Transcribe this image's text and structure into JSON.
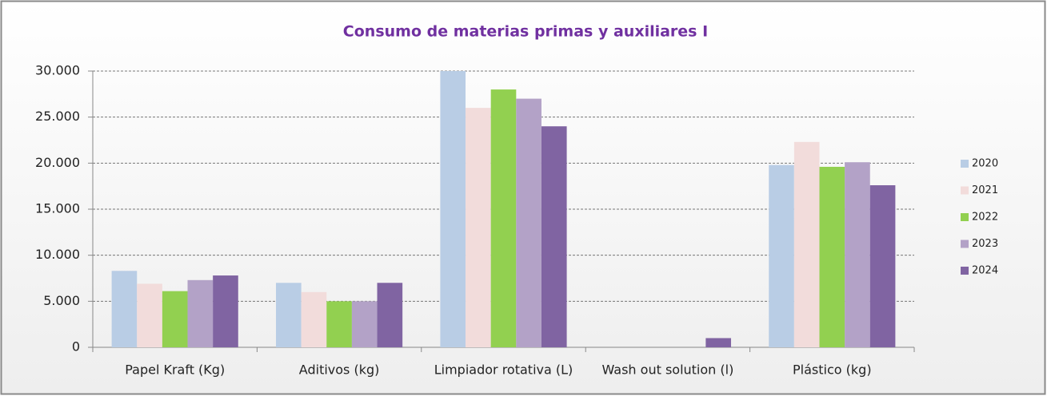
{
  "chart_data": {
    "type": "bar",
    "title": "Consumo de materias primas y auxiliares I",
    "categories": [
      "Papel Kraft (Kg)",
      "Aditivos (kg)",
      "Limpiador rotativa (L)",
      "Wash out solution (l)",
      "Plástico (kg)"
    ],
    "series": [
      {
        "name": "2020",
        "color": "#b9cde5",
        "values": [
          8300,
          7000,
          30000,
          0,
          19800
        ]
      },
      {
        "name": "2021",
        "color": "#f2dcdb",
        "values": [
          6900,
          6000,
          26000,
          0,
          22300
        ]
      },
      {
        "name": "2022",
        "color": "#92d050",
        "values": [
          6100,
          5000,
          28000,
          0,
          19600
        ]
      },
      {
        "name": "2023",
        "color": "#b3a2c7",
        "values": [
          7300,
          5000,
          27000,
          0,
          20100
        ]
      },
      {
        "name": "2024",
        "color": "#8064a2",
        "values": [
          7800,
          7000,
          24000,
          1000,
          17600
        ]
      }
    ],
    "ylim": [
      0,
      30000
    ],
    "yticks": [
      0,
      {
        "value": 5000,
        "label": "5.000"
      },
      {
        "value": 10000,
        "label": "10.000"
      },
      {
        "value": 15000,
        "label": "15.000"
      },
      {
        "value": 20000,
        "label": "20.000"
      },
      {
        "value": 25000,
        "label": "25.000"
      },
      {
        "value": 30000,
        "label": "30.000"
      }
    ],
    "grid": true,
    "legend": "right"
  }
}
